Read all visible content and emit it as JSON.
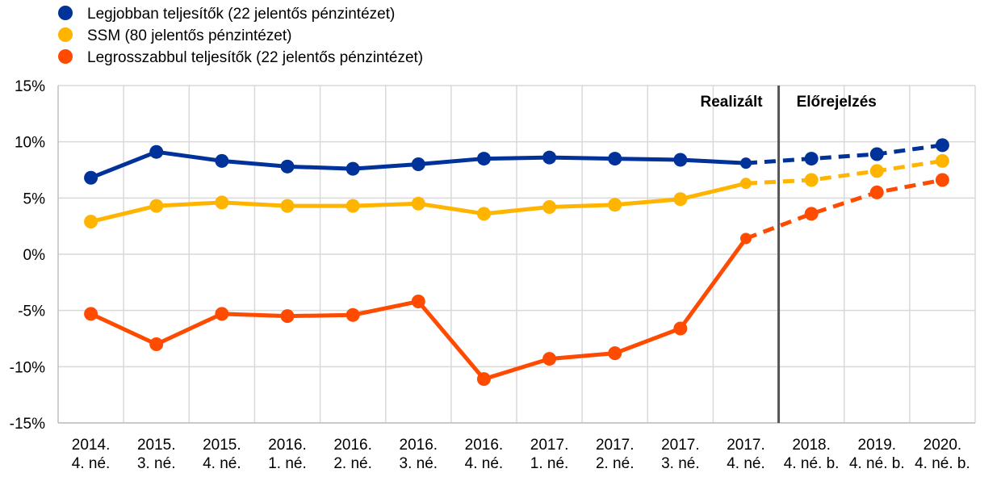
{
  "chart_data": {
    "type": "line",
    "categories": [
      [
        "2014.",
        "4. né."
      ],
      [
        "2015.",
        "3. né."
      ],
      [
        "2015.",
        "4. né."
      ],
      [
        "2016.",
        "1. né."
      ],
      [
        "2016.",
        "2. né."
      ],
      [
        "2016.",
        "3. né."
      ],
      [
        "2016.",
        "4. né."
      ],
      [
        "2017.",
        "1. né."
      ],
      [
        "2017.",
        "2. né."
      ],
      [
        "2017.",
        "3. né."
      ],
      [
        "2017.",
        "4. né."
      ],
      [
        "2018.",
        "4. né. b."
      ],
      [
        "2019.",
        "4. né. b."
      ],
      [
        "2020.",
        "4. né. b."
      ]
    ],
    "actual_count": 11,
    "ylim": [
      -15,
      15
    ],
    "yticks": [
      -15,
      -10,
      -5,
      0,
      5,
      10,
      15
    ],
    "ytick_labels": [
      "-15%",
      "-10%",
      "-5%",
      "0%",
      "5%",
      "10%",
      "15%"
    ],
    "grid": true,
    "legend_position": "top-left",
    "annotations": {
      "realized": "Realizált",
      "forecast": "Előrejelzés"
    },
    "series": [
      {
        "name": "Legjobban teljesítők (22 jelentős pénzintézet)",
        "color": "#003299",
        "values": [
          6.8,
          9.1,
          8.3,
          7.8,
          7.6,
          8.0,
          8.5,
          8.6,
          8.5,
          8.4,
          8.1,
          8.5,
          8.9,
          9.7
        ]
      },
      {
        "name": "SSM (80 jelentős pénzintézet)",
        "color": "#FFB400",
        "values": [
          2.9,
          4.3,
          4.6,
          4.3,
          4.3,
          4.5,
          3.6,
          4.2,
          4.4,
          4.9,
          6.3,
          6.6,
          7.4,
          8.3
        ]
      },
      {
        "name": "Legrosszabbul teljesítők (22 jelentős pénzintézet)",
        "color": "#FF4B00",
        "values": [
          -5.3,
          -8.0,
          -5.3,
          -5.5,
          -5.4,
          -4.2,
          -11.1,
          -9.3,
          -8.8,
          -6.6,
          1.4,
          3.6,
          5.5,
          6.6
        ]
      }
    ]
  }
}
